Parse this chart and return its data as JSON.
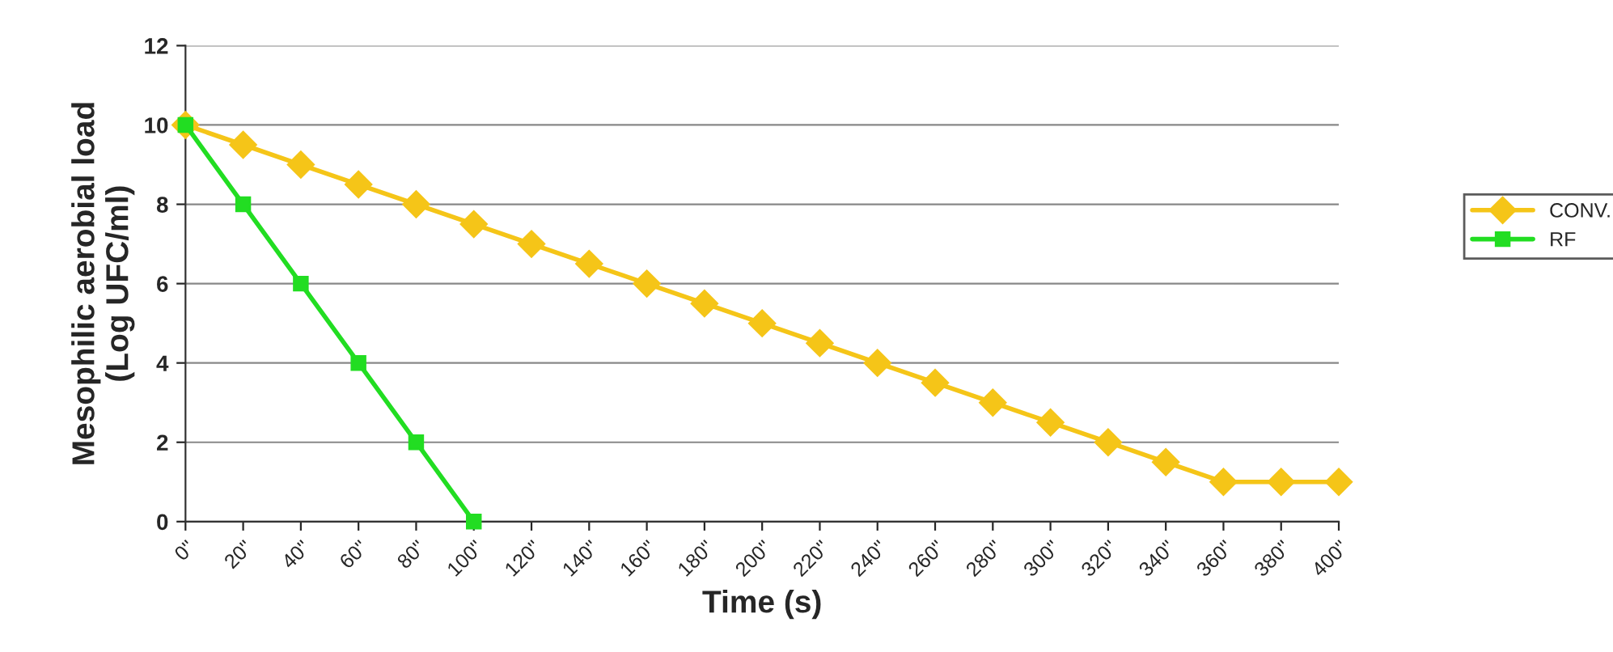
{
  "chart_data": {
    "type": "line",
    "xlabel": "Time (s)",
    "ylabel": "Mesophilic aerobial load\n(Log UFC/ml)",
    "categories": [
      "0\"",
      "20\"",
      "40\"",
      "60\"",
      "80\"",
      "100\"",
      "120\"",
      "140\"",
      "160\"",
      "180\"",
      "200\"",
      "220\"",
      "240\"",
      "260\"",
      "280\"",
      "300\"",
      "320\"",
      "340\"",
      "360\"",
      "380\"",
      "400\""
    ],
    "series": [
      {
        "name": "CONV.",
        "color": "#f5c518",
        "marker": "diamond",
        "values": [
          10,
          9.5,
          9,
          8.5,
          8,
          7.5,
          7,
          6.5,
          6,
          5.5,
          5,
          4.5,
          4,
          3.5,
          3,
          2.5,
          2,
          1.5,
          1,
          1,
          1
        ]
      },
      {
        "name": "RF",
        "color": "#22dd22",
        "marker": "square",
        "values": [
          10,
          8,
          6,
          4,
          2,
          0,
          null,
          null,
          null,
          null,
          null,
          null,
          null,
          null,
          null,
          null,
          null,
          null,
          null,
          null,
          null
        ]
      }
    ],
    "ylim": [
      0,
      12
    ],
    "yticks": [
      0,
      2,
      4,
      6,
      8,
      10,
      12
    ],
    "grid": "y",
    "legend": "right",
    "line_style": "solid"
  }
}
